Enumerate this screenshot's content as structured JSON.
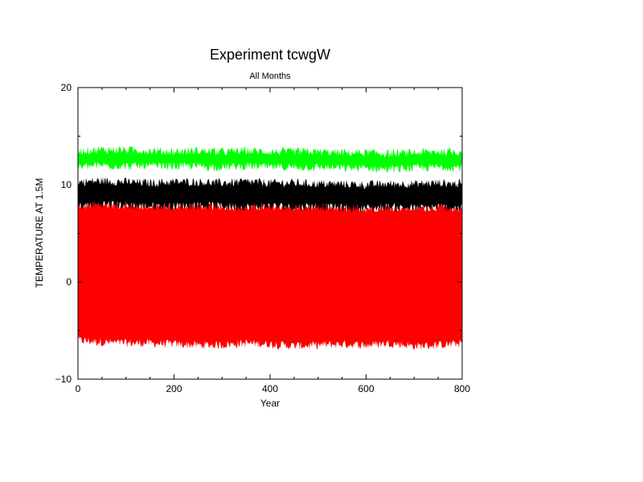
{
  "chart_data": {
    "type": "line",
    "title": "Experiment tcwgW",
    "subtitle": "All Months",
    "xlabel": "Year",
    "ylabel": "TEMPERATURE AT 1.5M",
    "xlim": [
      0,
      800
    ],
    "ylim": [
      -10,
      20
    ],
    "xticks": [
      0,
      200,
      400,
      600,
      800
    ],
    "yticks": [
      -10,
      0,
      10,
      20
    ],
    "xtick_labels": [
      "0",
      "200",
      "400",
      "600",
      "800"
    ],
    "ytick_labels": [
      "−10",
      "0",
      "10",
      "20"
    ],
    "grid": false,
    "series": [
      {
        "name": "red",
        "color": "#ff0000",
        "lower": [
          -6.0,
          -6.2,
          -6.3,
          -6.3,
          -6.4,
          -6.5,
          -6.5,
          -6.3,
          -6.4,
          -6.6,
          -6.5,
          -6.4,
          -6.5,
          -6.3,
          -6.6,
          -6.5,
          -6.3
        ],
        "upper": [
          7.8,
          8.0,
          7.9,
          7.8,
          7.8,
          7.9,
          7.8,
          7.7,
          7.8,
          7.7,
          7.8,
          7.6,
          7.6,
          7.7,
          7.6,
          7.7,
          7.6
        ]
      },
      {
        "name": "black",
        "color": "#000000",
        "lower": [
          7.8,
          8.0,
          7.9,
          7.8,
          7.8,
          7.9,
          7.8,
          7.7,
          7.8,
          7.7,
          7.8,
          7.6,
          7.6,
          7.7,
          7.6,
          7.7,
          7.6
        ],
        "upper": [
          10.3,
          10.4,
          10.3,
          10.2,
          10.3,
          10.3,
          10.2,
          10.3,
          10.2,
          10.2,
          10.1,
          10.1,
          10.0,
          10.1,
          10.1,
          10.2,
          10.1
        ]
      },
      {
        "name": "green",
        "color": "#00ff00",
        "lower": [
          11.8,
          12.0,
          11.9,
          11.9,
          11.9,
          11.9,
          11.8,
          11.9,
          11.8,
          11.8,
          11.8,
          11.7,
          11.7,
          11.6,
          11.7,
          11.8,
          11.8
        ],
        "upper": [
          13.5,
          13.6,
          13.6,
          13.5,
          13.4,
          13.5,
          13.4,
          13.5,
          13.4,
          13.4,
          13.4,
          13.3,
          13.3,
          13.2,
          13.3,
          13.4,
          13.4
        ]
      }
    ]
  }
}
